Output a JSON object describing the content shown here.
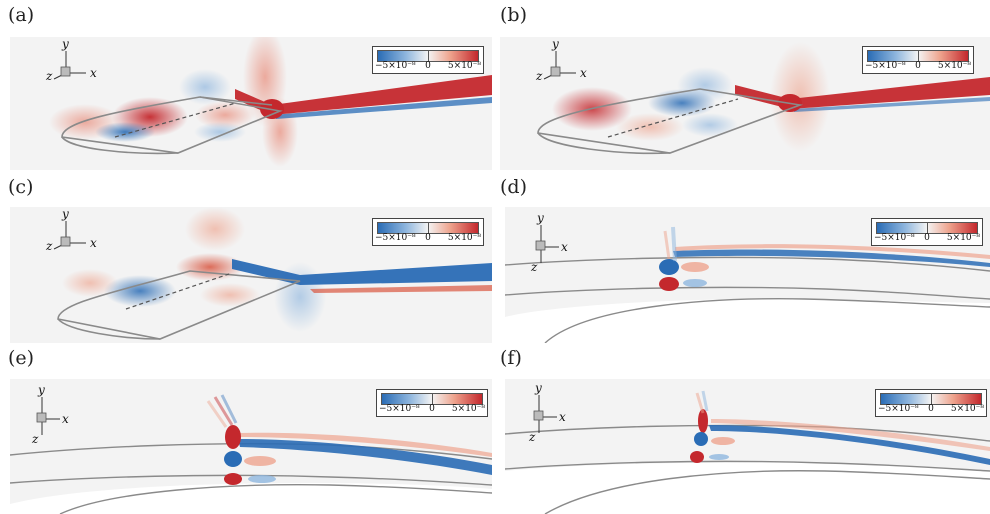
{
  "panels": [
    {
      "id": "a",
      "label": "(a)",
      "view": "oblique",
      "wake": "red"
    },
    {
      "id": "b",
      "label": "(b)",
      "view": "oblique",
      "wake": "red"
    },
    {
      "id": "c",
      "label": "(c)",
      "view": "oblique",
      "wake": "blue"
    },
    {
      "id": "d",
      "label": "(d)",
      "view": "side",
      "wake": "blue"
    },
    {
      "id": "e",
      "label": "(e)",
      "view": "side",
      "wake": "blue"
    },
    {
      "id": "f",
      "label": "(f)",
      "view": "side",
      "wake": "blue"
    }
  ],
  "legend": {
    "min": "−5×10⁻⁸",
    "zero": "0",
    "max": "5×10⁻⁸"
  },
  "axes": {
    "x": "x",
    "y": "y",
    "z": "z"
  },
  "colors": {
    "positive": "#c4282d",
    "negative": "#2a6cb5",
    "background": "#f3f3f3",
    "outline": "#8a8a8a"
  }
}
